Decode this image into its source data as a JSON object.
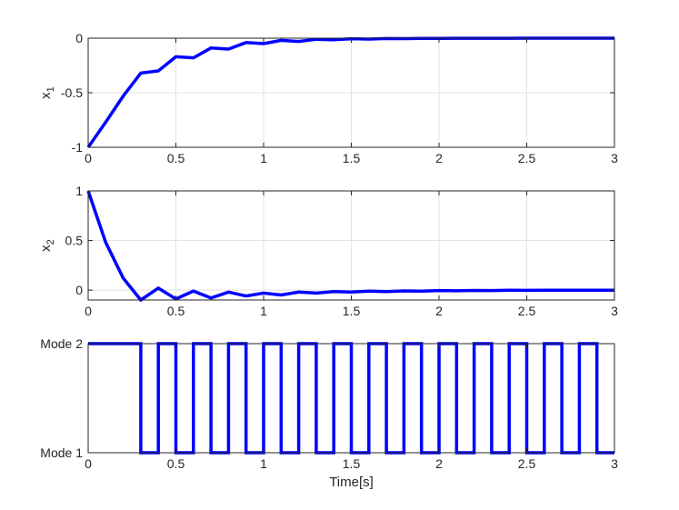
{
  "chart_data": [
    {
      "type": "line",
      "ylabel": "x",
      "ylabel_subscript": "1",
      "xlim": [
        0,
        3
      ],
      "ylim": [
        -1,
        0
      ],
      "x_ticks": [
        "0",
        "0.5",
        "1",
        "1.5",
        "2",
        "2.5",
        "3"
      ],
      "y_ticks": [
        "-1",
        "-0.5",
        "0"
      ],
      "grid": true,
      "color": "#0000ff",
      "x": [
        0,
        0.1,
        0.2,
        0.3,
        0.4,
        0.5,
        0.6,
        0.7,
        0.8,
        0.9,
        1.0,
        1.1,
        1.2,
        1.3,
        1.4,
        1.5,
        1.6,
        1.7,
        1.8,
        1.9,
        2.0,
        2.1,
        2.2,
        2.3,
        2.4,
        2.5,
        2.6,
        2.7,
        2.8,
        2.9,
        3.0
      ],
      "y": [
        -1.0,
        -0.77,
        -0.53,
        -0.32,
        -0.3,
        -0.17,
        -0.18,
        -0.09,
        -0.1,
        -0.04,
        -0.05,
        -0.02,
        -0.03,
        -0.01,
        -0.015,
        -0.005,
        -0.008,
        -0.003,
        -0.004,
        -0.002,
        -0.002,
        -0.001,
        -0.001,
        -0.001,
        -0.001,
        0,
        0,
        0,
        0,
        0,
        0
      ]
    },
    {
      "type": "line",
      "ylabel": "x",
      "ylabel_subscript": "2",
      "xlim": [
        0,
        3
      ],
      "ylim": [
        -0.1,
        1
      ],
      "x_ticks": [
        "0",
        "0.5",
        "1",
        "1.5",
        "2",
        "2.5",
        "3"
      ],
      "y_ticks": [
        "0",
        "0.5",
        "1"
      ],
      "grid": true,
      "color": "#0000ff",
      "x": [
        0,
        0.1,
        0.2,
        0.3,
        0.4,
        0.5,
        0.6,
        0.7,
        0.8,
        0.9,
        1.0,
        1.1,
        1.2,
        1.3,
        1.4,
        1.5,
        1.6,
        1.7,
        1.8,
        1.9,
        2.0,
        2.1,
        2.2,
        2.3,
        2.4,
        2.5,
        2.6,
        2.7,
        2.8,
        2.9,
        3.0
      ],
      "y": [
        1.0,
        0.48,
        0.12,
        -0.1,
        0.02,
        -0.09,
        -0.01,
        -0.08,
        -0.02,
        -0.06,
        -0.03,
        -0.05,
        -0.02,
        -0.03,
        -0.015,
        -0.02,
        -0.01,
        -0.015,
        -0.008,
        -0.01,
        -0.005,
        -0.007,
        -0.004,
        -0.005,
        -0.002,
        -0.003,
        -0.002,
        -0.002,
        -0.001,
        -0.001,
        -0.001
      ]
    },
    {
      "type": "line",
      "step": true,
      "xlabel": "Time[s]",
      "xlim": [
        0,
        3
      ],
      "ylim": [
        1,
        2
      ],
      "x_ticks": [
        "0",
        "0.5",
        "1",
        "1.5",
        "2",
        "2.5",
        "3"
      ],
      "y_tick_labels": [
        "Mode 1",
        "Mode 2"
      ],
      "grid": false,
      "color": "#0000ff",
      "x": [
        0,
        0.3,
        0.4,
        0.5,
        0.6,
        0.7,
        0.8,
        0.9,
        1.0,
        1.1,
        1.2,
        1.3,
        1.4,
        1.5,
        1.6,
        1.7,
        1.8,
        1.9,
        2.0,
        2.1,
        2.2,
        2.3,
        2.4,
        2.5,
        2.6,
        2.7,
        2.8,
        2.9,
        3.0
      ],
      "y": [
        2,
        1,
        2,
        1,
        2,
        1,
        2,
        1,
        2,
        1,
        2,
        1,
        2,
        1,
        2,
        1,
        2,
        1,
        2,
        1,
        2,
        1,
        2,
        1,
        2,
        1,
        2,
        1,
        1
      ]
    }
  ]
}
